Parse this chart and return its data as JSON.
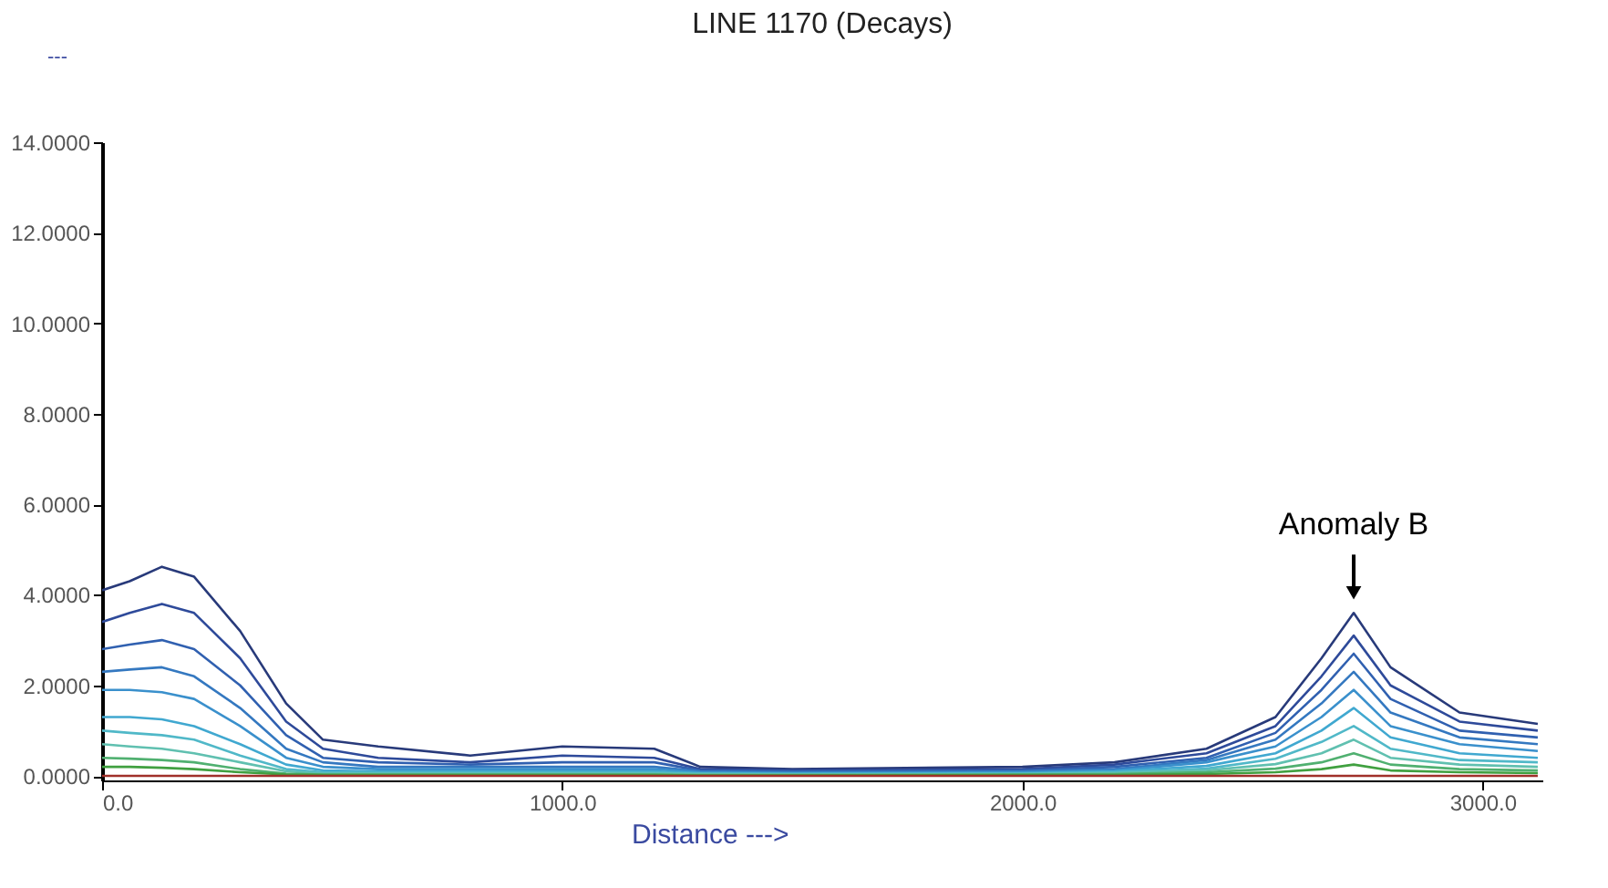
{
  "chart_data": {
    "type": "line",
    "title": "LINE 1170 (Decays)",
    "xlabel": "Distance --->",
    "ylabel": "---",
    "x": [
      0,
      60,
      130,
      200,
      300,
      400,
      480,
      600,
      800,
      1000,
      1200,
      1300,
      1500,
      2000,
      2200,
      2400,
      2550,
      2650,
      2720,
      2800,
      2950,
      3120
    ],
    "series": [
      {
        "color": "#283a7a",
        "values": [
          4.1,
          4.3,
          4.62,
          4.4,
          3.2,
          1.6,
          0.8,
          0.65,
          0.45,
          0.65,
          0.6,
          0.2,
          0.15,
          0.2,
          0.3,
          0.6,
          1.3,
          2.6,
          3.6,
          2.4,
          1.4,
          1.15
        ]
      },
      {
        "color": "#2e4a9a",
        "values": [
          3.4,
          3.6,
          3.8,
          3.6,
          2.6,
          1.2,
          0.6,
          0.4,
          0.3,
          0.45,
          0.4,
          0.15,
          0.12,
          0.15,
          0.25,
          0.5,
          1.1,
          2.2,
          3.1,
          2.0,
          1.2,
          1.0
        ]
      },
      {
        "color": "#3060b0",
        "values": [
          2.8,
          2.9,
          3.0,
          2.8,
          2.0,
          0.9,
          0.4,
          0.3,
          0.25,
          0.3,
          0.3,
          0.12,
          0.1,
          0.12,
          0.2,
          0.4,
          0.95,
          1.9,
          2.7,
          1.7,
          1.0,
          0.85
        ]
      },
      {
        "color": "#3478c0",
        "values": [
          2.3,
          2.35,
          2.4,
          2.2,
          1.5,
          0.6,
          0.3,
          0.2,
          0.2,
          0.2,
          0.2,
          0.1,
          0.08,
          0.1,
          0.15,
          0.35,
          0.8,
          1.6,
          2.3,
          1.4,
          0.85,
          0.7
        ]
      },
      {
        "color": "#3a90cc",
        "values": [
          1.9,
          1.9,
          1.85,
          1.7,
          1.1,
          0.4,
          0.2,
          0.15,
          0.15,
          0.15,
          0.15,
          0.08,
          0.06,
          0.08,
          0.12,
          0.3,
          0.65,
          1.3,
          1.9,
          1.1,
          0.7,
          0.55
        ]
      },
      {
        "color": "#40a8d0",
        "values": [
          1.3,
          1.3,
          1.25,
          1.1,
          0.7,
          0.25,
          0.12,
          0.1,
          0.1,
          0.1,
          0.1,
          0.06,
          0.05,
          0.06,
          0.1,
          0.22,
          0.5,
          1.0,
          1.5,
          0.85,
          0.5,
          0.4
        ]
      },
      {
        "color": "#50b8c8",
        "values": [
          1.0,
          0.95,
          0.9,
          0.8,
          0.45,
          0.15,
          0.08,
          0.07,
          0.07,
          0.07,
          0.07,
          0.05,
          0.04,
          0.05,
          0.08,
          0.16,
          0.38,
          0.75,
          1.1,
          0.6,
          0.35,
          0.3
        ]
      },
      {
        "color": "#60c0b0",
        "values": [
          0.7,
          0.65,
          0.6,
          0.5,
          0.3,
          0.1,
          0.05,
          0.05,
          0.05,
          0.05,
          0.05,
          0.04,
          0.03,
          0.04,
          0.06,
          0.12,
          0.26,
          0.5,
          0.8,
          0.4,
          0.25,
          0.2
        ]
      },
      {
        "color": "#50b070",
        "values": [
          0.4,
          0.38,
          0.35,
          0.3,
          0.15,
          0.05,
          0.03,
          0.03,
          0.03,
          0.03,
          0.03,
          0.02,
          0.02,
          0.03,
          0.04,
          0.08,
          0.16,
          0.3,
          0.5,
          0.25,
          0.15,
          0.12
        ]
      },
      {
        "color": "#40a040",
        "values": [
          0.2,
          0.2,
          0.18,
          0.15,
          0.08,
          0.03,
          0.02,
          0.02,
          0.02,
          0.02,
          0.02,
          0.01,
          0.01,
          0.02,
          0.02,
          0.04,
          0.08,
          0.15,
          0.25,
          0.12,
          0.08,
          0.06
        ]
      },
      {
        "color": "#a0302a",
        "values": [
          0,
          0,
          0,
          0,
          0,
          0,
          0,
          0,
          0,
          0,
          0,
          0,
          0,
          0,
          0,
          0,
          0,
          0,
          0,
          0,
          0,
          0
        ]
      }
    ],
    "xlim": [
      0,
      3130
    ],
    "ylim": [
      -0.1,
      14
    ],
    "xticks": [
      {
        "value": 0,
        "label": "0.0"
      },
      {
        "value": 1000,
        "label": "1000.0"
      },
      {
        "value": 2000,
        "label": "2000.0"
      },
      {
        "value": 3000,
        "label": "3000.0"
      }
    ],
    "yticks": [
      {
        "value": 0,
        "label": "0.0000"
      },
      {
        "value": 2,
        "label": "2.0000"
      },
      {
        "value": 4,
        "label": "4.0000"
      },
      {
        "value": 6,
        "label": "6.0000"
      },
      {
        "value": 8,
        "label": "8.0000"
      },
      {
        "value": 10,
        "label": "10.0000"
      },
      {
        "value": 12,
        "label": "12.0000"
      },
      {
        "value": 14,
        "label": "14.0000"
      }
    ],
    "annotations": [
      {
        "text": "Anomaly B",
        "x": 2720,
        "y": 3.6
      }
    ],
    "grid": false,
    "legend": false,
    "marker": "none",
    "line_style": "solid"
  }
}
